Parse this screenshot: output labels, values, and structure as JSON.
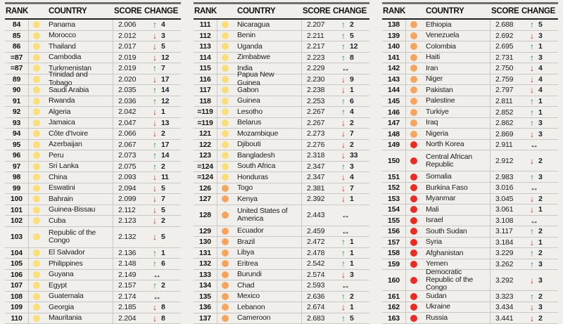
{
  "chart_data": {
    "type": "table",
    "title": "",
    "headers": {
      "rank": "RANK",
      "country": "COUNTRY",
      "score": "SCORE",
      "change": "CHANGE"
    },
    "band_colors": {
      "yellow": "#FADE7A",
      "orange": "#F7A55E",
      "red": "#EE2B22"
    },
    "change_glyphs": {
      "up": {
        "glyph": "↑",
        "color": "#12887B",
        "icon": "up-arrow-icon"
      },
      "down": {
        "glyph": "↓",
        "color": "#C2262B",
        "icon": "down-arrow-icon"
      },
      "same": {
        "glyph": "↔",
        "color": "#121212",
        "icon": "no-change-icon"
      }
    },
    "columns": [
      {
        "rows": [
          {
            "rank": "84",
            "band": "yellow",
            "country": "Panama",
            "score": "2.006",
            "dir": "up",
            "delta": "4"
          },
          {
            "rank": "85",
            "band": "yellow",
            "country": "Morocco",
            "score": "2.012",
            "dir": "down",
            "delta": "3"
          },
          {
            "rank": "86",
            "band": "yellow",
            "country": "Thailand",
            "score": "2.017",
            "dir": "down",
            "delta": "5"
          },
          {
            "rank": "=87",
            "band": "yellow",
            "country": "Cambodia",
            "score": "2.019",
            "dir": "down",
            "delta": "12"
          },
          {
            "rank": "=87",
            "band": "yellow",
            "country": "Turkmenistan",
            "score": "2.019",
            "dir": "up",
            "delta": "7"
          },
          {
            "rank": "89",
            "band": "yellow",
            "country": "Trinidad and Tobago",
            "score": "2.020",
            "dir": "down",
            "delta": "17"
          },
          {
            "rank": "90",
            "band": "yellow",
            "country": "Saudi Arabia",
            "score": "2.035",
            "dir": "up",
            "delta": "14"
          },
          {
            "rank": "91",
            "band": "yellow",
            "country": "Rwanda",
            "score": "2.036",
            "dir": "up",
            "delta": "12"
          },
          {
            "rank": "92",
            "band": "yellow",
            "country": "Algeria",
            "score": "2.042",
            "dir": "down",
            "delta": "1"
          },
          {
            "rank": "93",
            "band": "yellow",
            "country": "Jamaica",
            "score": "2.047",
            "dir": "down",
            "delta": "13"
          },
          {
            "rank": "94",
            "band": "yellow",
            "country": "Côte d'Ivoire",
            "score": "2.066",
            "dir": "down",
            "delta": "2"
          },
          {
            "rank": "95",
            "band": "yellow",
            "country": "Azerbaijan",
            "score": "2.067",
            "dir": "up",
            "delta": "17"
          },
          {
            "rank": "96",
            "band": "yellow",
            "country": "Peru",
            "score": "2.073",
            "dir": "up",
            "delta": "14"
          },
          {
            "rank": "97",
            "band": "yellow",
            "country": "Sri Lanka",
            "score": "2.075",
            "dir": "up",
            "delta": "2"
          },
          {
            "rank": "98",
            "band": "yellow",
            "country": "China",
            "score": "2.093",
            "dir": "down",
            "delta": "11"
          },
          {
            "rank": "99",
            "band": "yellow",
            "country": "Eswatini",
            "score": "2.094",
            "dir": "down",
            "delta": "5"
          },
          {
            "rank": "100",
            "band": "yellow",
            "country": "Bahrain",
            "score": "2.099",
            "dir": "down",
            "delta": "7"
          },
          {
            "rank": "101",
            "band": "yellow",
            "country": "Guinea-Bissau",
            "score": "2.112",
            "dir": "down",
            "delta": "5"
          },
          {
            "rank": "102",
            "band": "yellow",
            "country": "Cuba",
            "score": "2.123",
            "dir": "down",
            "delta": "2"
          },
          {
            "rank": "103",
            "band": "yellow",
            "country": "Republic of the Congo",
            "score": "2.132",
            "dir": "down",
            "delta": "5",
            "tall": true
          },
          {
            "rank": "104",
            "band": "yellow",
            "country": "El Salvador",
            "score": "2.136",
            "dir": "up",
            "delta": "1"
          },
          {
            "rank": "105",
            "band": "yellow",
            "country": "Philippines",
            "score": "2.148",
            "dir": "up",
            "delta": "6"
          },
          {
            "rank": "106",
            "band": "yellow",
            "country": "Guyana",
            "score": "2.149",
            "dir": "same",
            "delta": ""
          },
          {
            "rank": "107",
            "band": "yellow",
            "country": "Egypt",
            "score": "2.157",
            "dir": "up",
            "delta": "2"
          },
          {
            "rank": "108",
            "band": "yellow",
            "country": "Guatemala",
            "score": "2.174",
            "dir": "same",
            "delta": ""
          },
          {
            "rank": "109",
            "band": "yellow",
            "country": "Georgia",
            "score": "2.185",
            "dir": "down",
            "delta": "8"
          },
          {
            "rank": "110",
            "band": "yellow",
            "country": "Mauritania",
            "score": "2.204",
            "dir": "down",
            "delta": "8"
          }
        ]
      },
      {
        "rows": [
          {
            "rank": "111",
            "band": "yellow",
            "country": "Nicaragua",
            "score": "2.207",
            "dir": "up",
            "delta": "2"
          },
          {
            "rank": "112",
            "band": "yellow",
            "country": "Benin",
            "score": "2.211",
            "dir": "up",
            "delta": "5"
          },
          {
            "rank": "113",
            "band": "yellow",
            "country": "Uganda",
            "score": "2.217",
            "dir": "up",
            "delta": "12"
          },
          {
            "rank": "114",
            "band": "yellow",
            "country": "Zimbabwe",
            "score": "2.223",
            "dir": "up",
            "delta": "8"
          },
          {
            "rank": "115",
            "band": "yellow",
            "country": "India",
            "score": "2.229",
            "dir": "same",
            "delta": ""
          },
          {
            "rank": "116",
            "band": "yellow",
            "country": "Papua New Guinea",
            "score": "2.230",
            "dir": "down",
            "delta": "9"
          },
          {
            "rank": "117",
            "band": "yellow",
            "country": "Gabon",
            "score": "2.238",
            "dir": "down",
            "delta": "1"
          },
          {
            "rank": "118",
            "band": "yellow",
            "country": "Guinea",
            "score": "2.253",
            "dir": "up",
            "delta": "6"
          },
          {
            "rank": "=119",
            "band": "yellow",
            "country": "Lesotho",
            "score": "2.267",
            "dir": "up",
            "delta": "4"
          },
          {
            "rank": "=119",
            "band": "yellow",
            "country": "Belarus",
            "score": "2.267",
            "dir": "down",
            "delta": "2"
          },
          {
            "rank": "121",
            "band": "yellow",
            "country": "Mozambique",
            "score": "2.273",
            "dir": "down",
            "delta": "7"
          },
          {
            "rank": "122",
            "band": "yellow",
            "country": "Djibouti",
            "score": "2.276",
            "dir": "down",
            "delta": "2"
          },
          {
            "rank": "123",
            "band": "yellow",
            "country": "Bangladesh",
            "score": "2.318",
            "dir": "down",
            "delta": "33"
          },
          {
            "rank": "=124",
            "band": "yellow",
            "country": "South Africa",
            "score": "2.347",
            "dir": "up",
            "delta": "3"
          },
          {
            "rank": "=124",
            "band": "yellow",
            "country": "Honduras",
            "score": "2.347",
            "dir": "down",
            "delta": "4"
          },
          {
            "rank": "126",
            "band": "orange",
            "country": "Togo",
            "score": "2.381",
            "dir": "down",
            "delta": "7"
          },
          {
            "rank": "127",
            "band": "orange",
            "country": "Kenya",
            "score": "2.392",
            "dir": "down",
            "delta": "1"
          },
          {
            "rank": "128",
            "band": "orange",
            "country": "United States of America",
            "score": "2.443",
            "dir": "same",
            "delta": "",
            "tall": true
          },
          {
            "rank": "129",
            "band": "orange",
            "country": "Ecuador",
            "score": "2.459",
            "dir": "same",
            "delta": ""
          },
          {
            "rank": "130",
            "band": "orange",
            "country": "Brazil",
            "score": "2.472",
            "dir": "up",
            "delta": "1"
          },
          {
            "rank": "131",
            "band": "orange",
            "country": "Libya",
            "score": "2.478",
            "dir": "up",
            "delta": "1"
          },
          {
            "rank": "132",
            "band": "orange",
            "country": "Eritrea",
            "score": "2.542",
            "dir": "up",
            "delta": "1"
          },
          {
            "rank": "133",
            "band": "orange",
            "country": "Burundi",
            "score": "2.574",
            "dir": "down",
            "delta": "3"
          },
          {
            "rank": "134",
            "band": "orange",
            "country": "Chad",
            "score": "2.593",
            "dir": "same",
            "delta": ""
          },
          {
            "rank": "135",
            "band": "orange",
            "country": "Mexico",
            "score": "2.636",
            "dir": "up",
            "delta": "2"
          },
          {
            "rank": "136",
            "band": "orange",
            "country": "Lebanon",
            "score": "2.674",
            "dir": "down",
            "delta": "1"
          },
          {
            "rank": "137",
            "band": "orange",
            "country": "Cameroon",
            "score": "2.683",
            "dir": "up",
            "delta": "5"
          }
        ]
      },
      {
        "rows": [
          {
            "rank": "138",
            "band": "orange",
            "country": "Ethiopia",
            "score": "2.688",
            "dir": "up",
            "delta": "5"
          },
          {
            "rank": "139",
            "band": "orange",
            "country": "Venezuela",
            "score": "2.692",
            "dir": "down",
            "delta": "3"
          },
          {
            "rank": "140",
            "band": "orange",
            "country": "Colombia",
            "score": "2.695",
            "dir": "up",
            "delta": "1"
          },
          {
            "rank": "141",
            "band": "orange",
            "country": "Haiti",
            "score": "2.731",
            "dir": "up",
            "delta": "3"
          },
          {
            "rank": "142",
            "band": "orange",
            "country": "Iran",
            "score": "2.750",
            "dir": "down",
            "delta": "4"
          },
          {
            "rank": "143",
            "band": "orange",
            "country": "Niger",
            "score": "2.759",
            "dir": "down",
            "delta": "4"
          },
          {
            "rank": "144",
            "band": "orange",
            "country": "Pakistan",
            "score": "2.797",
            "dir": "down",
            "delta": "4"
          },
          {
            "rank": "145",
            "band": "orange",
            "country": "Palestine",
            "score": "2.811",
            "dir": "up",
            "delta": "1"
          },
          {
            "rank": "146",
            "band": "orange",
            "country": "Turkiye",
            "score": "2.852",
            "dir": "up",
            "delta": "1"
          },
          {
            "rank": "147",
            "band": "orange",
            "country": "Iraq",
            "score": "2.862",
            "dir": "up",
            "delta": "3"
          },
          {
            "rank": "148",
            "band": "orange",
            "country": "Nigeria",
            "score": "2.869",
            "dir": "down",
            "delta": "3"
          },
          {
            "rank": "149",
            "band": "red",
            "country": "North Korea",
            "score": "2.911",
            "dir": "same",
            "delta": ""
          },
          {
            "rank": "150",
            "band": "red",
            "country": "Central African Republic",
            "score": "2.912",
            "dir": "down",
            "delta": "2",
            "tall": true
          },
          {
            "rank": "151",
            "band": "red",
            "country": "Somalia",
            "score": "2.983",
            "dir": "up",
            "delta": "3"
          },
          {
            "rank": "152",
            "band": "red",
            "country": "Burkina Faso",
            "score": "3.016",
            "dir": "same",
            "delta": ""
          },
          {
            "rank": "153",
            "band": "red",
            "country": "Myanmar",
            "score": "3.045",
            "dir": "down",
            "delta": "2"
          },
          {
            "rank": "154",
            "band": "red",
            "country": "Mali",
            "score": "3.061",
            "dir": "down",
            "delta": "1"
          },
          {
            "rank": "155",
            "band": "red",
            "country": "Israel",
            "score": "3.108",
            "dir": "same",
            "delta": ""
          },
          {
            "rank": "156",
            "band": "red",
            "country": "South Sudan",
            "score": "3.117",
            "dir": "up",
            "delta": "2"
          },
          {
            "rank": "157",
            "band": "red",
            "country": "Syria",
            "score": "3.184",
            "dir": "down",
            "delta": "1"
          },
          {
            "rank": "158",
            "band": "red",
            "country": "Afghanistan",
            "score": "3.229",
            "dir": "up",
            "delta": "2"
          },
          {
            "rank": "159",
            "band": "red",
            "country": "Yemen",
            "score": "3.262",
            "dir": "up",
            "delta": "3"
          },
          {
            "rank": "160",
            "band": "red",
            "country": "Democratic Republic of the Congo",
            "score": "3.292",
            "dir": "down",
            "delta": "3",
            "tall": true
          },
          {
            "rank": "161",
            "band": "red",
            "country": "Sudan",
            "score": "3.323",
            "dir": "up",
            "delta": "2"
          },
          {
            "rank": "162",
            "band": "red",
            "country": "Ukraine",
            "score": "3.434",
            "dir": "down",
            "delta": "3"
          },
          {
            "rank": "163",
            "band": "red",
            "country": "Russia",
            "score": "3.441",
            "dir": "down",
            "delta": "2"
          }
        ]
      }
    ]
  }
}
